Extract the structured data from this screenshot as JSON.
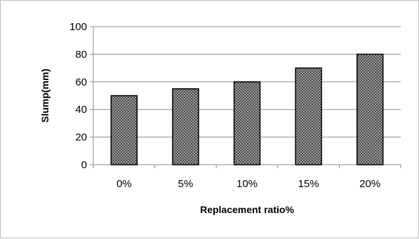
{
  "chart_data": {
    "type": "bar",
    "title": "",
    "xlabel": "Replacement ratio%",
    "ylabel": "Slump(mm)",
    "categories": [
      "0%",
      "5%",
      "10%",
      "15%",
      "20%"
    ],
    "values": [
      50,
      55,
      60,
      70,
      80
    ],
    "ylim": [
      0,
      100
    ],
    "yticks": [
      0,
      20,
      40,
      60,
      80,
      100
    ],
    "grid": true,
    "legend": "none",
    "colors": {
      "bar_fill": "#a9a9a9",
      "bar_stroke": "#000000",
      "grid": "#8c8c8c",
      "axis": "#8c8c8c"
    }
  }
}
